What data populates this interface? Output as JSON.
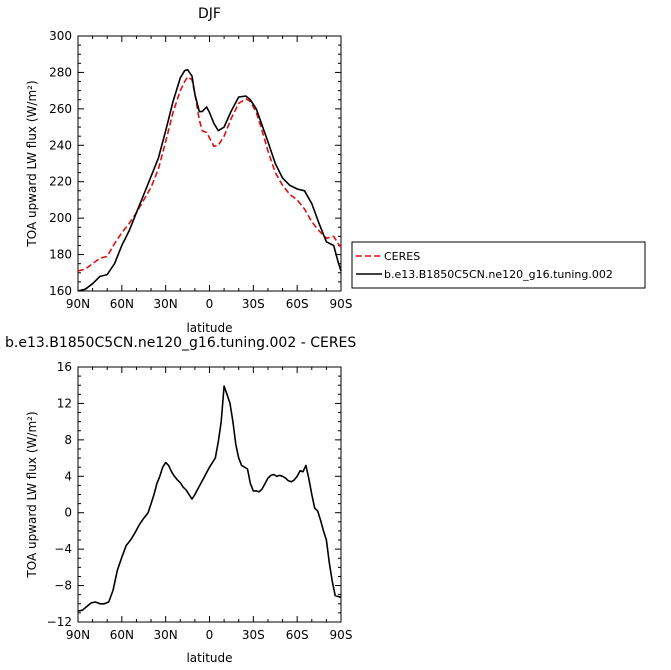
{
  "chart_data": [
    {
      "type": "line",
      "title": "DJF",
      "xlabel": "latitude",
      "ylabel": "TOA upward LW flux (W/m²)",
      "x_ticks": [
        90,
        60,
        30,
        0,
        -30,
        -60,
        -90
      ],
      "x_tick_labels": [
        "90N",
        "60N",
        "30N",
        "0",
        "30S",
        "60S",
        "90S"
      ],
      "xlim": [
        90,
        -90
      ],
      "ylim": [
        160,
        300
      ],
      "y_ticks": [
        160,
        180,
        200,
        220,
        240,
        260,
        280,
        300
      ],
      "legend_position": "right",
      "series": [
        {
          "name": "CERES",
          "color": "#dd1111",
          "dash": "dashed",
          "x": [
            90,
            85,
            80,
            75,
            70,
            65,
            60,
            55,
            50,
            45,
            40,
            35,
            30,
            25,
            20,
            17,
            15,
            12,
            10,
            7,
            5,
            2,
            0,
            -3,
            -6,
            -10,
            -15,
            -20,
            -25,
            -28,
            -32,
            -36,
            -40,
            -45,
            -50,
            -55,
            -60,
            -65,
            -70,
            -75,
            -80,
            -85,
            -88,
            -90
          ],
          "y": [
            171,
            172,
            175,
            178,
            179,
            186,
            192,
            197,
            203,
            210,
            217,
            227,
            242,
            258,
            270,
            275,
            277.5,
            276,
            268,
            254,
            248,
            247,
            244,
            239.5,
            240,
            245,
            255,
            263,
            265.5,
            264,
            258,
            248,
            237,
            225,
            218,
            213,
            210,
            205,
            198,
            193,
            189,
            190,
            186,
            184
          ]
        },
        {
          "name": "b.e13.B1850C5CN.ne120_g16.tuning.002",
          "color": "#000000",
          "dash": "solid",
          "x": [
            90,
            85,
            80,
            75,
            70,
            65,
            60,
            55,
            50,
            45,
            40,
            35,
            30,
            25,
            20,
            17,
            15,
            12,
            10,
            7,
            5,
            2,
            0,
            -3,
            -6,
            -10,
            -15,
            -20,
            -25,
            -28,
            -32,
            -36,
            -40,
            -45,
            -50,
            -55,
            -60,
            -65,
            -70,
            -75,
            -80,
            -85,
            -88,
            -90
          ],
          "y": [
            160,
            161,
            164,
            168,
            169,
            175,
            185,
            193,
            203,
            213,
            223,
            233,
            248,
            264,
            277,
            281,
            281.5,
            278,
            268,
            258.5,
            258.5,
            261,
            258,
            252,
            248,
            250,
            259,
            266.5,
            267,
            265,
            260,
            251,
            242,
            230,
            222,
            218,
            216,
            215,
            208,
            197,
            187,
            185,
            176,
            171
          ]
        }
      ]
    },
    {
      "type": "line",
      "title": "b.e13.B1850C5CN.ne120_g16.tuning.002 - CERES",
      "xlabel": "latitude",
      "ylabel": "TOA upward LW flux (W/m²)",
      "x_ticks": [
        90,
        60,
        30,
        0,
        -30,
        -60,
        -90
      ],
      "x_tick_labels": [
        "90N",
        "60N",
        "30N",
        "0",
        "30S",
        "60S",
        "90S"
      ],
      "xlim": [
        90,
        -90
      ],
      "ylim": [
        -12,
        16
      ],
      "y_ticks": [
        -12,
        -8,
        -4,
        0,
        4,
        8,
        12,
        16
      ],
      "series": [
        {
          "color": "#000000",
          "dash": "solid",
          "x": [
            90,
            87,
            84,
            81,
            78,
            75,
            72,
            69,
            66,
            63,
            60,
            57,
            54,
            51,
            48,
            45,
            42,
            40,
            38,
            36,
            34,
            32,
            30,
            28,
            26,
            24,
            22,
            20,
            18,
            16,
            14,
            12,
            10,
            8,
            6,
            4,
            2,
            0,
            -2,
            -4,
            -6,
            -8,
            -10,
            -12,
            -14,
            -16,
            -18,
            -20,
            -22,
            -24,
            -26,
            -28,
            -30,
            -32,
            -34,
            -36,
            -38,
            -40,
            -42,
            -44,
            -46,
            -48,
            -50,
            -52,
            -54,
            -56,
            -58,
            -60,
            -62,
            -64,
            -66,
            -68,
            -70,
            -72,
            -74,
            -76,
            -78,
            -80,
            -82,
            -84,
            -86,
            -88,
            -90
          ],
          "y": [
            -10.8,
            -10.7,
            -10.3,
            -9.9,
            -9.8,
            -10.0,
            -10.0,
            -9.8,
            -8.5,
            -6.3,
            -4.9,
            -3.6,
            -3.0,
            -2.2,
            -1.3,
            -0.6,
            0.0,
            1.0,
            2.0,
            3.2,
            4.0,
            5.0,
            5.5,
            5.2,
            4.5,
            4.0,
            3.6,
            3.3,
            2.8,
            2.5,
            2.0,
            1.5,
            2.0,
            2.6,
            3.2,
            3.8,
            4.4,
            5.0,
            5.5,
            6.0,
            7.8,
            10.0,
            13.9,
            13.0,
            12.0,
            10.0,
            7.5,
            6.0,
            5.2,
            5.0,
            4.8,
            3.2,
            2.4,
            2.4,
            2.3,
            2.6,
            3.2,
            3.8,
            4.1,
            4.2,
            4.0,
            4.1,
            4.0,
            3.8,
            3.5,
            3.4,
            3.6,
            4.0,
            4.6,
            4.5,
            5.2,
            3.7,
            2.0,
            0.5,
            0.2,
            -0.8,
            -2.0,
            -3.0,
            -5.5,
            -7.5,
            -9.1,
            -9.2,
            -9.3
          ]
        }
      ]
    }
  ]
}
